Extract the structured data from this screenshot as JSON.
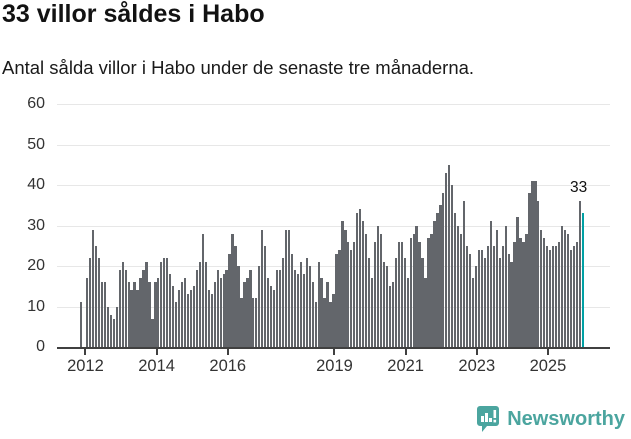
{
  "title": "33 villor såldes i Habo",
  "subtitle": "Antal sålda villor i Habo under de senaste tre månaderna.",
  "annotation_label": "33",
  "footer": {
    "brand": "Newsworthy",
    "brand_color": "#4ba59f",
    "logo_icon": "bar-chart-speech-bubble-icon"
  },
  "colors": {
    "bar": "#63666b",
    "highlight": "#00a0a4",
    "gridline": "#e7e7e7",
    "axis": "#404040",
    "text": "#333333"
  },
  "chart_data": {
    "type": "bar",
    "title": "33 villor såldes i Habo",
    "subtitle": "Antal sålda villor i Habo under de senaste tre månaderna.",
    "xlabel": "",
    "ylabel": "",
    "ylim": [
      0,
      60
    ],
    "yticks": [
      0,
      10,
      20,
      30,
      40,
      50,
      60
    ],
    "xtick_years": [
      2012,
      2014,
      2016,
      2019,
      2021,
      2023,
      2025
    ],
    "grid": "horizontal",
    "legend": "none",
    "x_start_month": "2011-12",
    "x_frequency": "monthly (rolling 3-month sums)",
    "values": [
      11,
      0,
      17,
      22,
      29,
      25,
      22,
      16,
      16,
      10,
      8,
      7,
      10,
      19,
      21,
      19,
      16,
      14,
      16,
      14,
      17,
      19,
      21,
      16,
      7,
      16,
      17,
      21,
      22,
      22,
      18,
      15,
      11,
      14,
      16,
      17,
      13,
      14,
      15,
      19,
      21,
      28,
      21,
      14,
      13,
      16,
      19,
      17,
      18,
      19,
      23,
      28,
      25,
      20,
      12,
      16,
      17,
      19,
      12,
      12,
      20,
      29,
      25,
      17,
      15,
      14,
      19,
      19,
      22,
      29,
      29,
      23,
      19,
      18,
      21,
      18,
      22,
      20,
      16,
      11,
      21,
      17,
      12,
      16,
      11,
      13,
      23,
      24,
      31,
      29,
      26,
      24,
      26,
      33,
      34,
      31,
      28,
      22,
      17,
      26,
      30,
      28,
      21,
      20,
      15,
      16,
      22,
      26,
      26,
      22,
      17,
      27,
      28,
      30,
      26,
      22,
      17,
      27,
      28,
      31,
      33,
      35,
      38,
      43,
      45,
      40,
      33,
      30,
      28,
      36,
      25,
      23,
      17,
      20,
      24,
      24,
      22,
      25,
      31,
      25,
      29,
      22,
      25,
      30,
      23,
      21,
      26,
      32,
      27,
      26,
      28,
      38,
      41,
      41,
      36,
      29,
      27,
      25,
      24,
      25,
      25,
      26,
      30,
      29,
      28,
      24,
      25,
      26,
      36,
      33
    ],
    "highlight_last_bar": true,
    "highlight_value": 33,
    "annotation": "33"
  }
}
